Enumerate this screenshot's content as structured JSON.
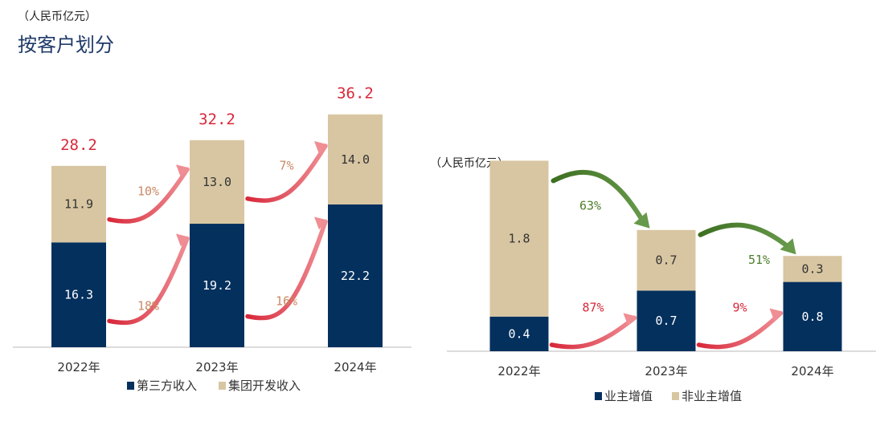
{
  "header": {
    "unit": "（人民币亿元）",
    "title": "按客户划分"
  },
  "colors": {
    "navy": "#04305e",
    "tan": "#d8c6a2",
    "red": "#d8283a",
    "red_light": "#ef8e94",
    "orange": "#c98a64",
    "green": "#4d7e2c",
    "axis": "#c8c8c8",
    "text": "#333333"
  },
  "chart_data": [
    {
      "type": "bar",
      "stacked": true,
      "categories": [
        "2022年",
        "2023年",
        "2024年"
      ],
      "series": [
        {
          "name": "第三方收入",
          "values": [
            16.3,
            19.2,
            22.2
          ],
          "color": "#04305e"
        },
        {
          "name": "集团开发收入",
          "values": [
            11.9,
            13.0,
            14.0
          ],
          "color": "#d8c6a2"
        }
      ],
      "totals": [
        "28.2",
        "32.2",
        "36.2"
      ],
      "value_labels": [
        [
          "16.3",
          "19.2",
          "22.2"
        ],
        [
          "11.9",
          "13.0",
          "14.0"
        ]
      ],
      "growth_annotations": {
        "bottom": [
          "18%",
          "16%"
        ],
        "top": [
          "10%",
          "7%"
        ]
      },
      "legend": "bottom",
      "ylim": [
        0,
        40
      ]
    },
    {
      "type": "bar",
      "stacked": true,
      "unit": "（人民币亿元）",
      "categories": [
        "2022年",
        "2023年",
        "2024年"
      ],
      "series": [
        {
          "name": "业主增值",
          "values": [
            0.4,
            0.7,
            0.8
          ],
          "color": "#04305e"
        },
        {
          "name": "非业主增值",
          "values": [
            1.8,
            0.7,
            0.3
          ],
          "color": "#d8c6a2"
        }
      ],
      "value_labels": [
        [
          "0.4",
          "0.7",
          "0.8"
        ],
        [
          "1.8",
          "0.7",
          "0.3"
        ]
      ],
      "growth_annotations": {
        "bottom": [
          "87%",
          "9%"
        ],
        "top": [
          "63%",
          "51%"
        ]
      },
      "legend": "bottom",
      "ylim": [
        0,
        2.5
      ]
    }
  ]
}
